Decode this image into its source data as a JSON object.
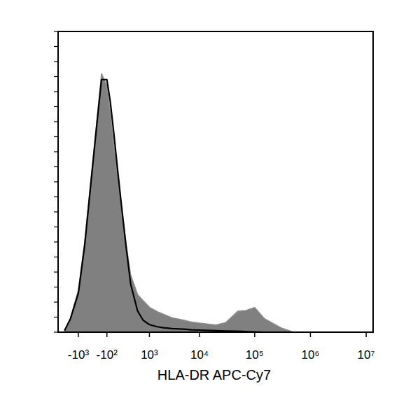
{
  "chart_data": {
    "type": "histogram",
    "x_label": "HLA-DR APC-Cy7",
    "log": "x",
    "tick_labels": "x",
    "grid": false,
    "x": [
      -2000,
      -1500,
      -1000,
      -700,
      -500,
      -300,
      -200,
      -100,
      -50,
      0,
      50,
      100,
      200,
      300,
      500,
      700,
      1000,
      1500,
      2000,
      3000,
      5000,
      7000,
      10000,
      20000,
      30000,
      50000,
      70000,
      100000,
      150000,
      200000,
      300000,
      500000,
      1000000
    ],
    "series": [
      {
        "type": "area",
        "color": "#808080",
        "values": [
          0.5,
          4.6,
          14,
          30,
          48,
          71,
          86,
          82,
          73,
          62,
          52,
          43,
          29,
          19,
          12.5,
          10.5,
          8.3,
          6.8,
          6,
          4.8,
          4,
          3.4,
          3,
          2.4,
          3.2,
          7,
          7.2,
          8.2,
          4.5,
          3.2,
          1.4,
          0,
          0
        ]
      },
      {
        "type": "line",
        "color": "#000000",
        "values": [
          0.5,
          4.5,
          13,
          29,
          47,
          70,
          84,
          84,
          77,
          66,
          54,
          44,
          28,
          16,
          7,
          4,
          2.5,
          1.8,
          1.5,
          1.2,
          1,
          0.8,
          0.7,
          0.5,
          0.4,
          0.3,
          0.2,
          0.1,
          0,
          0,
          0,
          0,
          0
        ]
      }
    ],
    "xlim": [
      -2700,
      13300000
    ],
    "xticks": [
      {
        "value": -1000,
        "label": "-10³"
      },
      {
        "value": -100,
        "label": "-10²"
      },
      {
        "value": 1000,
        "label": "10³"
      },
      {
        "value": 10000,
        "label": "10⁴"
      },
      {
        "value": 100000,
        "label": "10⁵"
      },
      {
        "value": 1000000,
        "label": "10⁶"
      },
      {
        "value": 10000000,
        "label": "10⁷"
      }
    ],
    "ylim": [
      0,
      100
    ],
    "yticks": [
      0,
      5,
      10,
      15,
      20,
      25,
      30,
      35,
      40,
      45,
      50,
      55,
      60,
      65,
      70,
      75,
      80,
      85,
      90,
      95,
      100
    ]
  }
}
